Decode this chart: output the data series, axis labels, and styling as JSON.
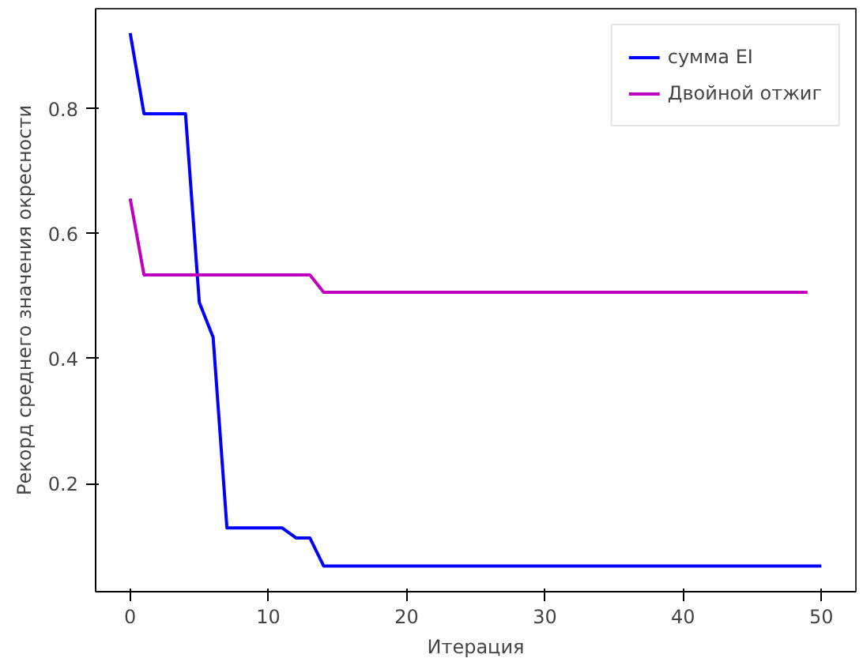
{
  "chart_data": {
    "type": "line",
    "xlabel": "Итерация",
    "ylabel": "Рекорд среднего значения окресности",
    "xlim": [
      -2.5,
      52.5
    ],
    "ylim": [
      0.027,
      0.96
    ],
    "xticks": [
      0,
      10,
      20,
      30,
      40,
      50
    ],
    "yticks": [
      0.2,
      0.4,
      0.6,
      0.8
    ],
    "grid": false,
    "legend": "top right",
    "line_style": "solid",
    "series": [
      {
        "name": "сумма EI",
        "color": "#0000ff",
        "x": [
          0,
          1,
          4,
          5,
          6,
          7,
          11,
          12,
          13,
          14,
          50
        ],
        "values": [
          0.921,
          0.792,
          0.792,
          0.49,
          0.434,
          0.129,
          0.129,
          0.113,
          0.113,
          0.068,
          0.068
        ]
      },
      {
        "name": "Двойной отжиг",
        "color": "#bf00bf",
        "x": [
          0,
          1,
          13,
          14,
          49
        ],
        "values": [
          0.656,
          0.534,
          0.534,
          0.506,
          0.506
        ]
      }
    ]
  }
}
